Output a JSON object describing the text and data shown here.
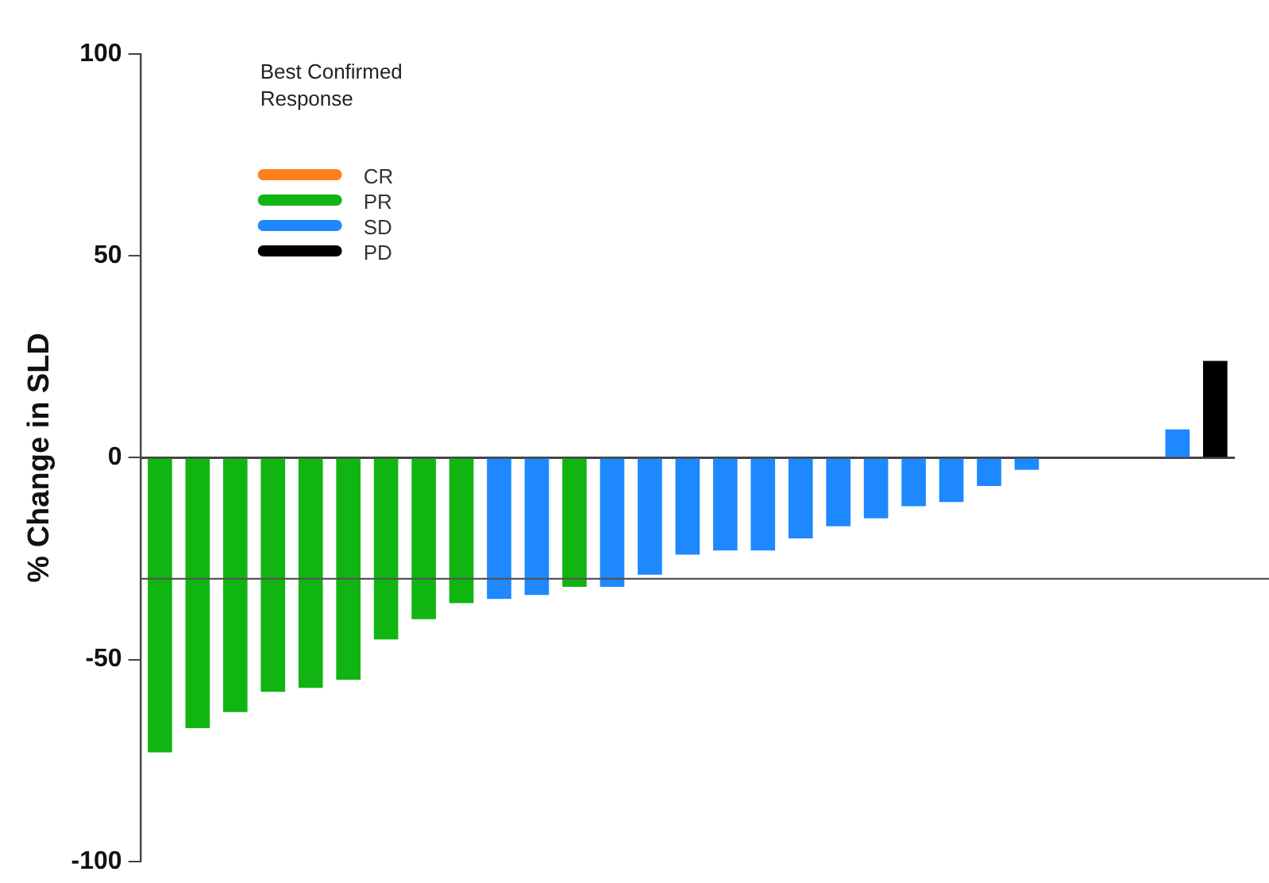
{
  "chart_data": {
    "type": "bar",
    "ylabel": "% Change in SLD",
    "legend_title": "Best Confirmed Response",
    "categories": [
      null,
      null,
      null,
      null,
      null,
      null,
      null,
      null,
      null,
      null,
      null,
      null,
      null,
      null,
      null,
      null,
      null,
      null,
      null,
      null,
      null,
      null,
      null,
      null,
      null,
      null,
      null,
      null,
      null
    ],
    "series": [
      {
        "name": "CR",
        "color": "#ff7f1e",
        "values": [
          null,
          null,
          null,
          null,
          null,
          null,
          null,
          null,
          null,
          null,
          null,
          null,
          null,
          null,
          null,
          null,
          null,
          null,
          null,
          null,
          null,
          null,
          null,
          null,
          null,
          null,
          null,
          null,
          null
        ]
      },
      {
        "name": "PR",
        "color": "#11b511",
        "values": [
          -73,
          -67,
          -63,
          -58,
          -57,
          -55,
          -45,
          -40,
          -36,
          null,
          null,
          -32,
          null,
          null,
          null,
          null,
          null,
          null,
          null,
          null,
          null,
          null,
          null,
          null,
          null,
          null,
          null,
          null,
          null
        ]
      },
      {
        "name": "SD",
        "color": "#1e88ff",
        "values": [
          null,
          null,
          null,
          null,
          null,
          null,
          null,
          null,
          null,
          -35,
          -34,
          null,
          -32,
          -29,
          -24,
          -23,
          -23,
          -20,
          -17,
          -15,
          -12,
          -11,
          -7,
          -3,
          null,
          null,
          null,
          7,
          null
        ]
      },
      {
        "name": "PD",
        "color": "#000000",
        "values": [
          null,
          null,
          null,
          null,
          null,
          null,
          null,
          null,
          null,
          null,
          null,
          null,
          null,
          null,
          null,
          null,
          null,
          null,
          null,
          null,
          null,
          null,
          null,
          null,
          null,
          null,
          null,
          null,
          24
        ]
      }
    ],
    "ylim": [
      -100,
      100
    ],
    "yticks": [
      -100,
      -50,
      0,
      50,
      100
    ],
    "ref_lines": [
      {
        "axis": "y",
        "value": -30,
        "color": "#555555"
      }
    ],
    "legend": "top left",
    "tick_labels": "y"
  }
}
